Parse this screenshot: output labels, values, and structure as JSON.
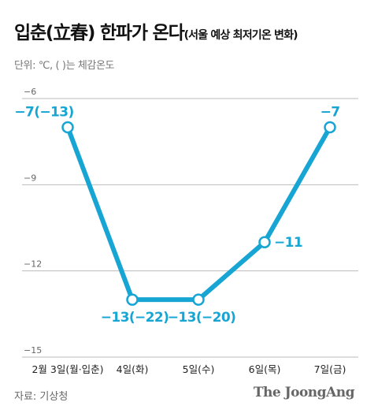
{
  "header": {
    "title": "입춘(立春) 한파가 온다",
    "subtitle": "(서울 예상 최저기온 변화)",
    "unit": "단위: ℃, ( )는 체감온도"
  },
  "footer": {
    "source": "자료: 기상청",
    "brand": "The JoongAng"
  },
  "chart_data": {
    "type": "line",
    "categories": [
      "2월 3일(월·입춘)",
      "4일(화)",
      "5일(수)",
      "6일(목)",
      "7일(금)"
    ],
    "series": [
      {
        "values": [
          -7,
          -13,
          -13,
          -11,
          -7
        ],
        "data_labels": [
          "−7(−13)",
          "−13(−22)",
          "−13(−20)",
          "−11",
          "−7"
        ],
        "color": "#17a5d4"
      }
    ],
    "y_ticks": [
      "−6",
      "−9",
      "−12",
      "−15"
    ],
    "ylim": [
      -15,
      -6
    ],
    "grid": true,
    "line_color": "#17a5d4",
    "grid_color": "#bbbbbb"
  }
}
